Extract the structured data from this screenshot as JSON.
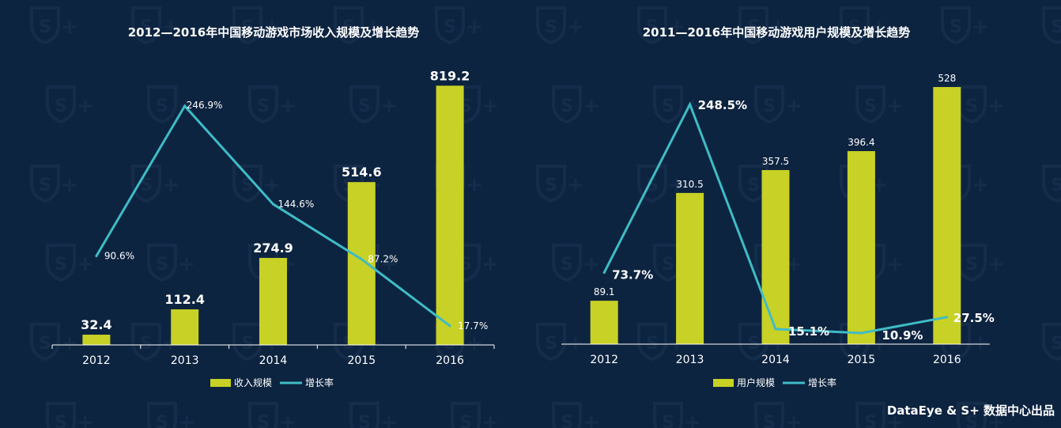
{
  "footer": "DataEye & S+ 数据中心出品",
  "colors": {
    "background": "#0d2440",
    "bar": "#c8d125",
    "line": "#3fbcc6",
    "text": "#ffffff",
    "watermark": "#1d3654"
  },
  "chart_data": [
    {
      "type": "bar",
      "title": "2012—2016年中国移动游戏市场收入规模及增长趋势",
      "categories": [
        "2012",
        "2013",
        "2014",
        "2015",
        "2016"
      ],
      "series": [
        {
          "name": "收入规模",
          "type": "bar",
          "values": [
            32.4,
            112.4,
            274.9,
            514.6,
            819.2
          ],
          "labels": [
            "32.4",
            "112.4",
            "274.9",
            "514.6",
            "819.2"
          ]
        },
        {
          "name": "增长率",
          "type": "line",
          "values": [
            90.6,
            246.9,
            144.6,
            87.2,
            17.7
          ],
          "labels": [
            "90.6%",
            "246.9%",
            "144.6%",
            "87.2%",
            "17.7%"
          ]
        }
      ],
      "legend": "bottom-center",
      "grid": false
    },
    {
      "type": "bar",
      "title": "2011—2016年中国移动游戏用户规模及增长趋势",
      "categories": [
        "2012",
        "2013",
        "2014",
        "2015",
        "2016"
      ],
      "series": [
        {
          "name": "用户规模",
          "type": "bar",
          "values": [
            89.1,
            310.5,
            357.5,
            396.4,
            528
          ],
          "labels": [
            "89.1",
            "310.5",
            "357.5",
            "396.4",
            "528"
          ]
        },
        {
          "name": "增长率",
          "type": "line",
          "values": [
            73.7,
            248.5,
            15.1,
            10.9,
            27.5
          ],
          "labels": [
            "73.7%",
            "248.5%",
            "15.1%",
            "10.9%",
            "27.5%"
          ]
        }
      ],
      "legend": "bottom-center",
      "grid": false
    }
  ]
}
